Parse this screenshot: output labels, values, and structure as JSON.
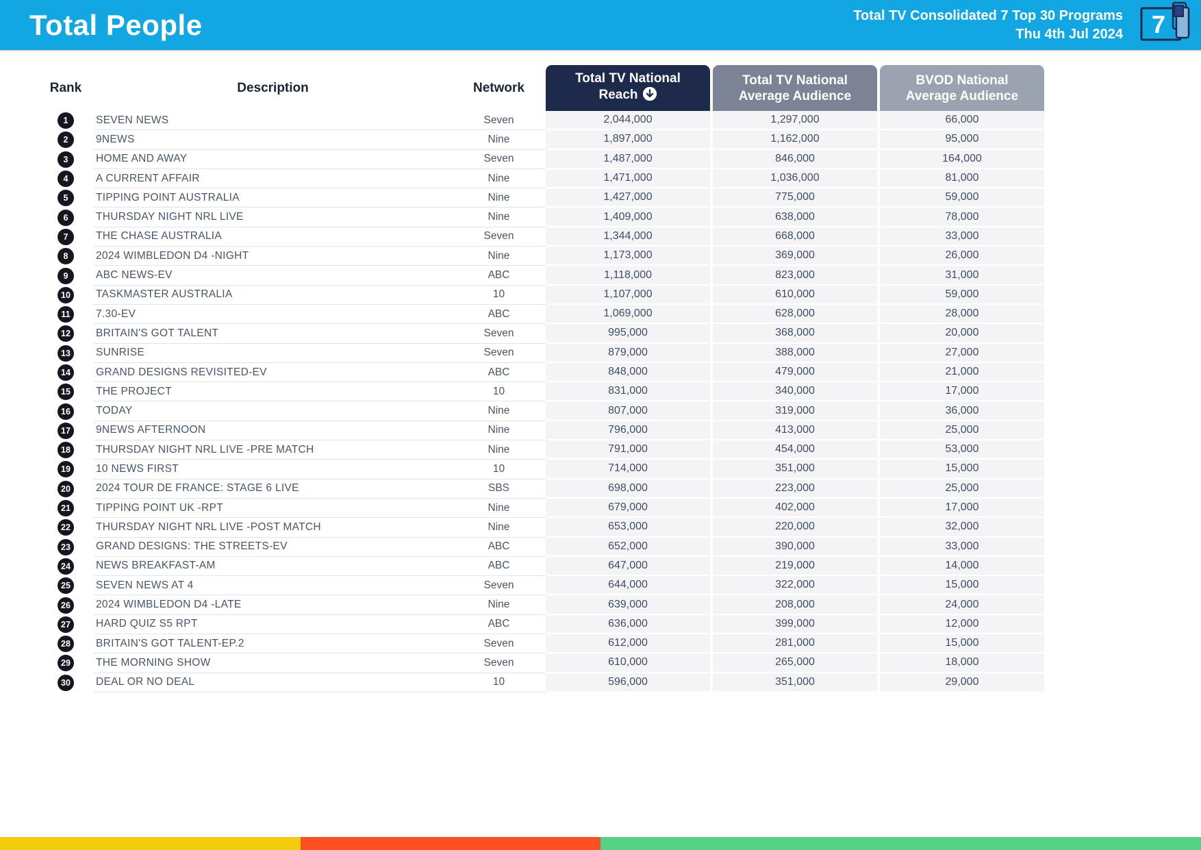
{
  "header": {
    "title": "Total People",
    "report_title": "Total TV Consolidated 7 Top 30 Programs",
    "report_date": "Thu 4th Jul 2024",
    "channel_icon_number": "7",
    "bg_color": "#12a7e2"
  },
  "table": {
    "headers": {
      "rank": "Rank",
      "description": "Description",
      "network": "Network",
      "reach": "Total TV National Reach",
      "avg_audience": "Total TV National Average Audience",
      "bvod": "BVOD National Average Audience"
    },
    "sort_column": "reach",
    "sort_icon": "circled-down-arrow",
    "header_colors": {
      "reach": "#1e2a4c",
      "avg_audience": "#7b8394",
      "bvod": "#9ba3b0"
    },
    "rows": [
      {
        "rank": "1",
        "description": "SEVEN NEWS",
        "network": "Seven",
        "reach": "2,044,000",
        "avg_audience": "1,297,000",
        "bvod": "66,000"
      },
      {
        "rank": "2",
        "description": "9NEWS",
        "network": "Nine",
        "reach": "1,897,000",
        "avg_audience": "1,162,000",
        "bvod": "95,000"
      },
      {
        "rank": "3",
        "description": "HOME AND AWAY",
        "network": "Seven",
        "reach": "1,487,000",
        "avg_audience": "846,000",
        "bvod": "164,000"
      },
      {
        "rank": "4",
        "description": "A CURRENT AFFAIR",
        "network": "Nine",
        "reach": "1,471,000",
        "avg_audience": "1,036,000",
        "bvod": "81,000"
      },
      {
        "rank": "5",
        "description": "TIPPING POINT AUSTRALIA",
        "network": "Nine",
        "reach": "1,427,000",
        "avg_audience": "775,000",
        "bvod": "59,000"
      },
      {
        "rank": "6",
        "description": "THURSDAY NIGHT NRL LIVE",
        "network": "Nine",
        "reach": "1,409,000",
        "avg_audience": "638,000",
        "bvod": "78,000"
      },
      {
        "rank": "7",
        "description": "THE CHASE AUSTRALIA",
        "network": "Seven",
        "reach": "1,344,000",
        "avg_audience": "668,000",
        "bvod": "33,000"
      },
      {
        "rank": "8",
        "description": "2024 WIMBLEDON D4 -NIGHT",
        "network": "Nine",
        "reach": "1,173,000",
        "avg_audience": "369,000",
        "bvod": "26,000"
      },
      {
        "rank": "9",
        "description": "ABC NEWS-EV",
        "network": "ABC",
        "reach": "1,118,000",
        "avg_audience": "823,000",
        "bvod": "31,000"
      },
      {
        "rank": "10",
        "description": "TASKMASTER AUSTRALIA",
        "network": "10",
        "reach": "1,107,000",
        "avg_audience": "610,000",
        "bvod": "59,000"
      },
      {
        "rank": "11",
        "description": "7.30-EV",
        "network": "ABC",
        "reach": "1,069,000",
        "avg_audience": "628,000",
        "bvod": "28,000"
      },
      {
        "rank": "12",
        "description": "BRITAIN'S GOT TALENT",
        "network": "Seven",
        "reach": "995,000",
        "avg_audience": "368,000",
        "bvod": "20,000"
      },
      {
        "rank": "13",
        "description": "SUNRISE",
        "network": "Seven",
        "reach": "879,000",
        "avg_audience": "388,000",
        "bvod": "27,000"
      },
      {
        "rank": "14",
        "description": "GRAND DESIGNS REVISITED-EV",
        "network": "ABC",
        "reach": "848,000",
        "avg_audience": "479,000",
        "bvod": "21,000"
      },
      {
        "rank": "15",
        "description": "THE PROJECT",
        "network": "10",
        "reach": "831,000",
        "avg_audience": "340,000",
        "bvod": "17,000"
      },
      {
        "rank": "16",
        "description": "TODAY",
        "network": "Nine",
        "reach": "807,000",
        "avg_audience": "319,000",
        "bvod": "36,000"
      },
      {
        "rank": "17",
        "description": "9NEWS AFTERNOON",
        "network": "Nine",
        "reach": "796,000",
        "avg_audience": "413,000",
        "bvod": "25,000"
      },
      {
        "rank": "18",
        "description": "THURSDAY NIGHT NRL LIVE -PRE MATCH",
        "network": "Nine",
        "reach": "791,000",
        "avg_audience": "454,000",
        "bvod": "53,000"
      },
      {
        "rank": "19",
        "description": "10 NEWS FIRST",
        "network": "10",
        "reach": "714,000",
        "avg_audience": "351,000",
        "bvod": "15,000"
      },
      {
        "rank": "20",
        "description": "2024 TOUR DE FRANCE: STAGE 6 LIVE",
        "network": "SBS",
        "reach": "698,000",
        "avg_audience": "223,000",
        "bvod": "25,000"
      },
      {
        "rank": "21",
        "description": "TIPPING POINT UK -RPT",
        "network": "Nine",
        "reach": "679,000",
        "avg_audience": "402,000",
        "bvod": "17,000"
      },
      {
        "rank": "22",
        "description": "THURSDAY NIGHT NRL LIVE -POST MATCH",
        "network": "Nine",
        "reach": "653,000",
        "avg_audience": "220,000",
        "bvod": "32,000"
      },
      {
        "rank": "23",
        "description": "GRAND DESIGNS: THE STREETS-EV",
        "network": "ABC",
        "reach": "652,000",
        "avg_audience": "390,000",
        "bvod": "33,000"
      },
      {
        "rank": "24",
        "description": "NEWS BREAKFAST-AM",
        "network": "ABC",
        "reach": "647,000",
        "avg_audience": "219,000",
        "bvod": "14,000"
      },
      {
        "rank": "25",
        "description": "SEVEN NEWS AT 4",
        "network": "Seven",
        "reach": "644,000",
        "avg_audience": "322,000",
        "bvod": "15,000"
      },
      {
        "rank": "26",
        "description": "2024 WIMBLEDON D4 -LATE",
        "network": "Nine",
        "reach": "639,000",
        "avg_audience": "208,000",
        "bvod": "24,000"
      },
      {
        "rank": "27",
        "description": "HARD QUIZ S5 RPT",
        "network": "ABC",
        "reach": "636,000",
        "avg_audience": "399,000",
        "bvod": "12,000"
      },
      {
        "rank": "28",
        "description": "BRITAIN'S GOT TALENT-EP.2",
        "network": "Seven",
        "reach": "612,000",
        "avg_audience": "281,000",
        "bvod": "15,000"
      },
      {
        "rank": "29",
        "description": "THE MORNING SHOW",
        "network": "Seven",
        "reach": "610,000",
        "avg_audience": "265,000",
        "bvod": "18,000"
      },
      {
        "rank": "30",
        "description": "DEAL OR NO DEAL",
        "network": "10",
        "reach": "596,000",
        "avg_audience": "351,000",
        "bvod": "29,000"
      }
    ]
  },
  "footer_bar": {
    "segments": [
      {
        "color": "#f5cb0f",
        "width_pct": 25
      },
      {
        "color": "#fb4f24",
        "width_pct": 25
      },
      {
        "color": "#55d287",
        "width_pct": 50
      }
    ]
  }
}
